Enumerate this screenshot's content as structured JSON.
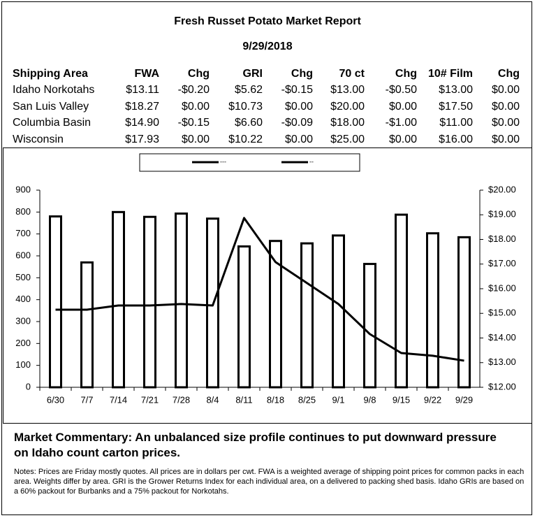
{
  "header": {
    "title": "Fresh Russet Potato Market Report",
    "date": "9/29/2018"
  },
  "table": {
    "columns": [
      "Shipping Area",
      "FWA",
      "Chg",
      "GRI",
      "Chg",
      "70 ct",
      "Chg",
      "10# Film",
      "Chg"
    ],
    "rows": [
      [
        "Idaho Norkotahs",
        "$13.11",
        "-$0.20",
        "$5.62",
        "-$0.15",
        "$13.00",
        "-$0.50",
        "$13.00",
        "$0.00"
      ],
      [
        "San Luis Valley",
        "$18.27",
        "$0.00",
        "$10.73",
        "$0.00",
        "$20.00",
        "$0.00",
        "$17.50",
        "$0.00"
      ],
      [
        "Columbia Basin",
        "$14.90",
        "-$0.15",
        "$6.60",
        "-$0.09",
        "$18.00",
        "-$1.00",
        "$11.00",
        "$0.00"
      ],
      [
        "Wisconsin",
        "$17.93",
        "$0.00",
        "$10.22",
        "$0.00",
        "$25.00",
        "$0.00",
        "$16.00",
        "$0.00"
      ]
    ]
  },
  "chart_data": {
    "type": "bar",
    "categories": [
      "6/30",
      "7/7",
      "7/14",
      "7/21",
      "7/28",
      "8/4",
      "8/11",
      "8/18",
      "8/25",
      "9/1",
      "9/8",
      "9/15",
      "9/22",
      "9/29"
    ],
    "series": [
      {
        "name": "---",
        "type": "bar",
        "color": "#000000",
        "values": [
          780,
          570,
          800,
          778,
          793,
          770,
          643,
          668,
          657,
          693,
          563,
          788,
          703,
          685
        ]
      },
      {
        "name": "--",
        "type": "line",
        "axis": "y2",
        "color": "#000000",
        "values": [
          15.15,
          15.15,
          15.32,
          15.32,
          15.38,
          15.32,
          18.87,
          17.08,
          16.23,
          15.38,
          14.16,
          13.39,
          13.28,
          13.08
        ]
      }
    ],
    "ylim": [
      0,
      900
    ],
    "yticks": [
      0,
      100,
      200,
      300,
      400,
      500,
      600,
      700,
      800,
      900
    ],
    "y2lim": [
      12,
      20
    ],
    "y2ticks": [
      {
        "value": 12,
        "label": "$12.00"
      },
      {
        "value": 13,
        "label": "$13.00"
      },
      {
        "value": 14,
        "label": "$14.00"
      },
      {
        "value": 15,
        "label": "$15.00"
      },
      {
        "value": 16,
        "label": "$16.00"
      },
      {
        "value": 17,
        "label": "$17.00"
      },
      {
        "value": 18,
        "label": "$18.00"
      },
      {
        "value": 19,
        "label": "$19.00"
      },
      {
        "value": 20,
        "label": "$20.00"
      }
    ],
    "legend": "top"
  },
  "commentary": "Market Commentary: An unbalanced size profile continues to put downward pressure on Idaho count carton prices.",
  "notes": "Notes: Prices are Friday mostly quotes. All prices are in dollars per cwt. FWA is a weighted average of shipping point prices for common packs in each area. Weights differ by area. GRI is the Grower Returns Index for each individual area, on a delivered to packing shed basis. Idaho GRIs are based on a 60% packout for Burbanks and a 75% packout for Norkotahs."
}
